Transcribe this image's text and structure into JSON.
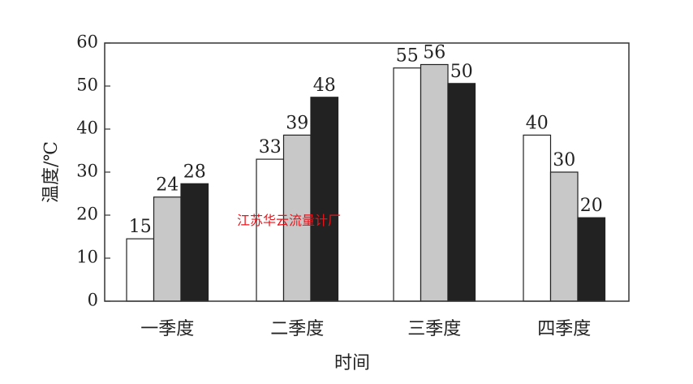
{
  "chart_data": {
    "type": "bar",
    "categories": [
      "一季度",
      "二季度",
      "三季度",
      "四季度"
    ],
    "series": [
      {
        "fill": "#ffffff",
        "values": [
          15,
          33,
          55,
          40
        ]
      },
      {
        "fill": "#c8c8c8",
        "values": [
          24,
          39,
          56,
          30
        ]
      },
      {
        "fill": "#222222",
        "values": [
          28,
          48,
          50,
          20
        ]
      }
    ],
    "bar_heights": [
      [
        14.5,
        33,
        54.2,
        38.6
      ],
      [
        24.2,
        38.6,
        55,
        30
      ],
      [
        27.3,
        47.4,
        50.6,
        19.4
      ]
    ],
    "xlabel": "时间",
    "ylabel": "温度/℃",
    "ylim": [
      0,
      60
    ],
    "yticks": [
      0,
      10,
      20,
      30,
      40,
      50,
      60
    ],
    "grid": false,
    "legend": "none"
  },
  "watermark": "江苏华云流量计厂"
}
